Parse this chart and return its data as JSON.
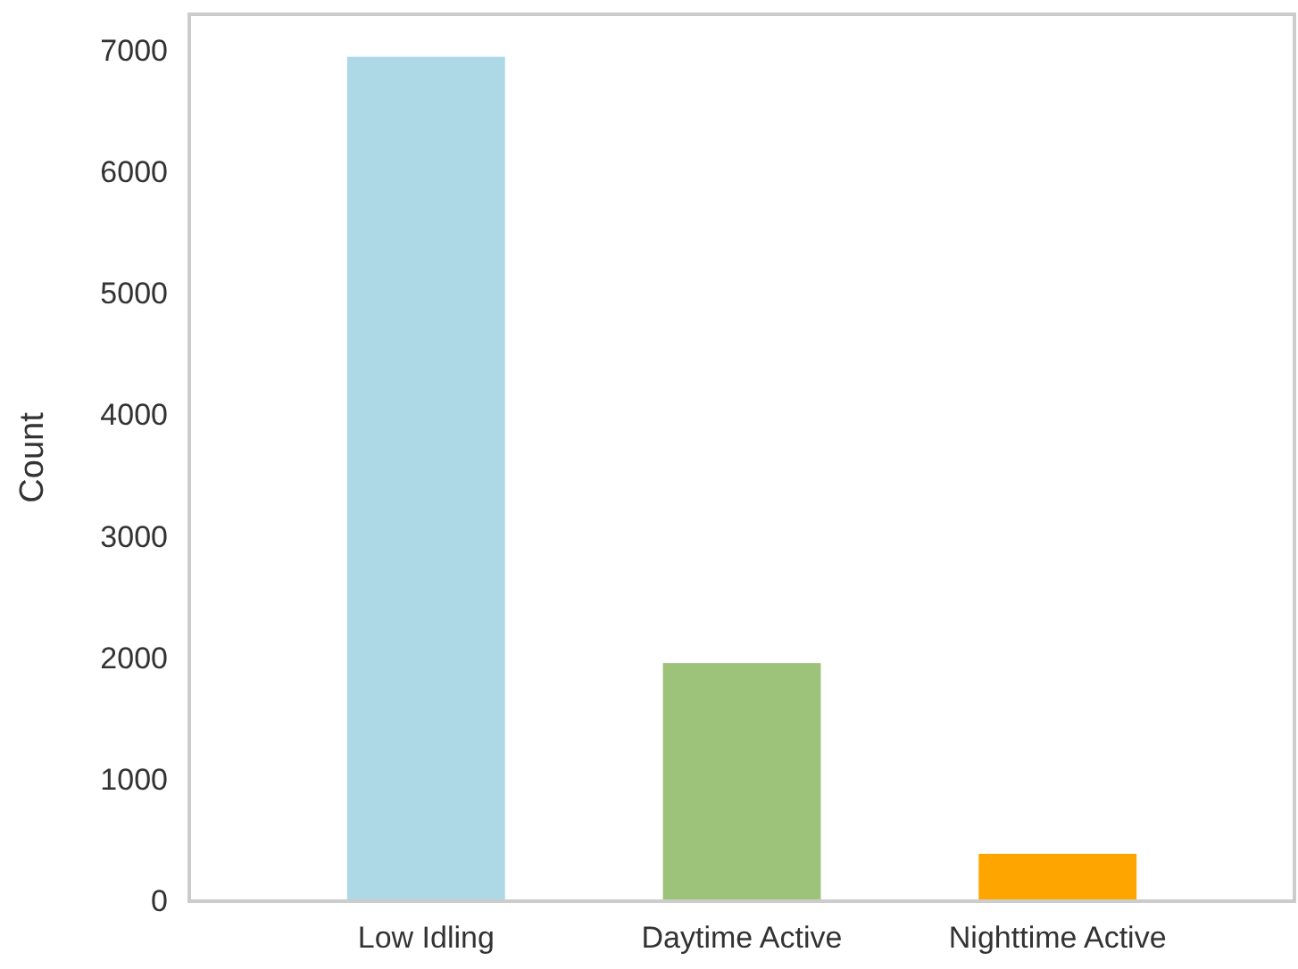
{
  "chart_data": {
    "type": "bar",
    "ylabel": "Count",
    "categories": [
      "Low Idling",
      "Daytime Active",
      "Nighttime Active"
    ],
    "values": [
      6950,
      1960,
      390
    ],
    "colors": [
      "#add8e6",
      "#9dc279",
      "#ffa500"
    ],
    "ylim": [
      0,
      7300
    ],
    "yticks": [
      0,
      1000,
      2000,
      3000,
      4000,
      5000,
      6000,
      7000
    ],
    "grid": false,
    "legend": false
  }
}
